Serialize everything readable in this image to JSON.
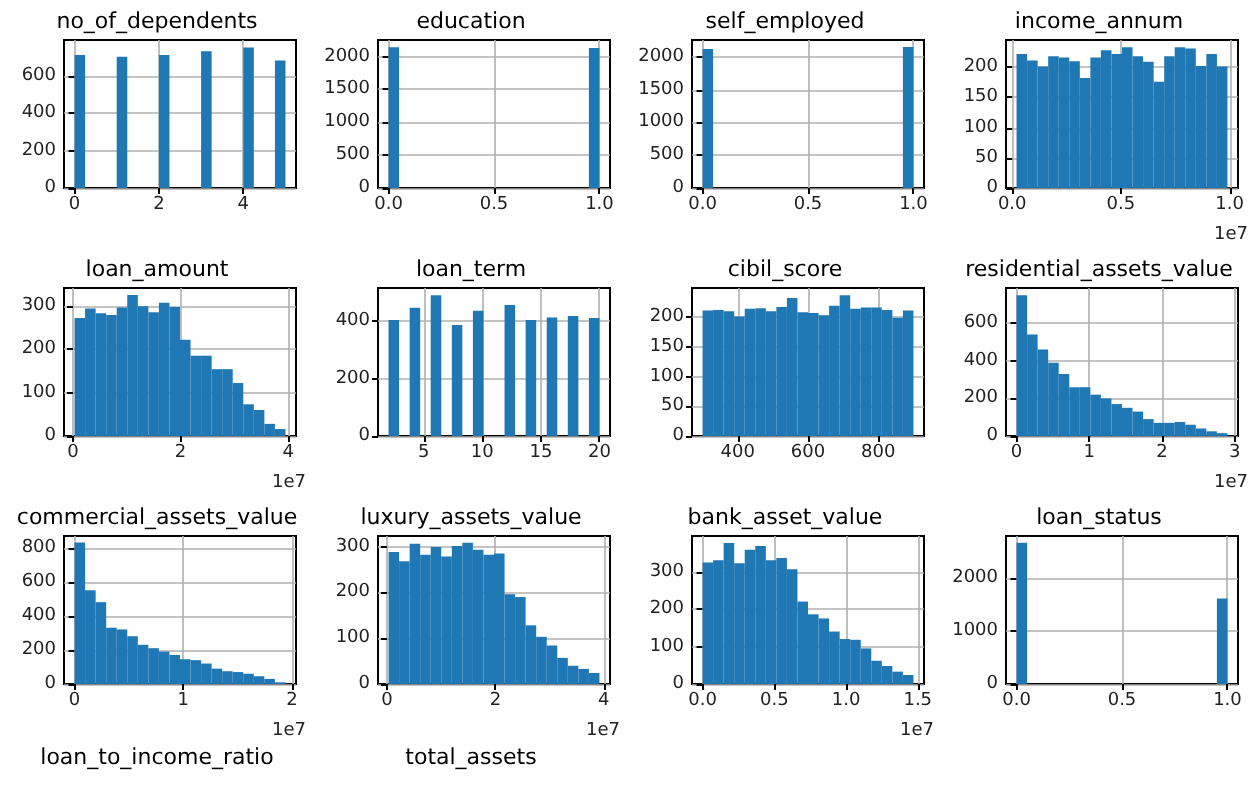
{
  "chart_data": [
    {
      "type": "histogram",
      "title": "no_of_dependents",
      "color": "#1f77b4",
      "grid": true,
      "bins": [
        0,
        0.25,
        0.5,
        0.75,
        1,
        1.25,
        1.5,
        1.75,
        2,
        2.25,
        2.5,
        2.75,
        3,
        3.25,
        3.5,
        3.75,
        4,
        4.25,
        4.5,
        4.75,
        5
      ],
      "values": [
        710,
        0,
        0,
        0,
        700,
        0,
        0,
        0,
        710,
        0,
        0,
        0,
        730,
        0,
        0,
        0,
        750,
        0,
        0,
        680
      ],
      "xlim": [
        -0.25,
        5.25
      ],
      "xticks": [
        0,
        2,
        4
      ],
      "ylim": [
        0,
        790
      ],
      "yticks": [
        0,
        200,
        400,
        600
      ]
    },
    {
      "type": "histogram",
      "title": "education",
      "color": "#1f77b4",
      "grid": true,
      "bins": [
        0,
        0.05,
        0.1,
        0.15,
        0.2,
        0.25,
        0.3,
        0.35,
        0.4,
        0.45,
        0.5,
        0.55,
        0.6,
        0.65,
        0.7,
        0.75,
        0.8,
        0.85,
        0.9,
        0.95,
        1
      ],
      "values": [
        2140,
        0,
        0,
        0,
        0,
        0,
        0,
        0,
        0,
        0,
        0,
        0,
        0,
        0,
        0,
        0,
        0,
        0,
        0,
        2130
      ],
      "xlim": [
        -0.05,
        1.05
      ],
      "xticks": [
        {
          "value": 0,
          "label": "0.0"
        },
        {
          "value": 0.5,
          "label": "0.5"
        },
        {
          "value": 1,
          "label": "1.0"
        }
      ],
      "ylim": [
        0,
        2251
      ],
      "yticks": [
        0,
        500,
        1000,
        1500,
        2000
      ]
    },
    {
      "type": "histogram",
      "title": "self_employed",
      "color": "#1f77b4",
      "grid": true,
      "bins": [
        0,
        0.05,
        0.1,
        0.15,
        0.2,
        0.25,
        0.3,
        0.35,
        0.4,
        0.45,
        0.5,
        0.55,
        0.6,
        0.65,
        0.7,
        0.75,
        0.8,
        0.85,
        0.9,
        0.95,
        1
      ],
      "values": [
        2120,
        0,
        0,
        0,
        0,
        0,
        0,
        0,
        0,
        0,
        0,
        0,
        0,
        0,
        0,
        0,
        0,
        0,
        0,
        2150
      ],
      "xlim": [
        -0.05,
        1.05
      ],
      "xticks": [
        {
          "value": 0,
          "label": "0.0"
        },
        {
          "value": 0.5,
          "label": "0.5"
        },
        {
          "value": 1,
          "label": "1.0"
        }
      ],
      "ylim": [
        0,
        2258
      ],
      "yticks": [
        0,
        500,
        1000,
        1500,
        2000
      ]
    },
    {
      "type": "histogram",
      "title": "income_annum",
      "xlabel": "1e7",
      "color": "#1f77b4",
      "grid": true,
      "bins": [
        0.02,
        0.0685,
        0.117,
        0.1655,
        0.214,
        0.2625,
        0.311,
        0.3595,
        0.408,
        0.4565,
        0.505,
        0.5535,
        0.602,
        0.6505,
        0.699,
        0.7475,
        0.796,
        0.8445,
        0.893,
        0.9415,
        0.99
      ],
      "values": [
        222,
        211,
        201,
        218,
        216,
        210,
        182,
        216,
        228,
        222,
        233,
        218,
        209,
        176,
        218,
        233,
        231,
        202,
        222,
        201
      ],
      "xlim": [
        -0.0285,
        1.0385
      ],
      "xticks": [
        {
          "value": 0,
          "label": "0.0"
        },
        {
          "value": 0.5,
          "label": "0.5"
        },
        {
          "value": 1,
          "label": "1.0"
        }
      ],
      "ylim": [
        0,
        245
      ],
      "yticks": [
        0,
        50,
        100,
        150,
        200
      ]
    },
    {
      "type": "histogram",
      "title": "loan_amount",
      "xlabel": "1e7",
      "color": "#1f77b4",
      "grid": true,
      "bins": [
        0.03,
        0.226,
        0.422,
        0.618,
        0.814,
        1.01,
        1.206,
        1.402,
        1.598,
        1.794,
        1.99,
        2.186,
        2.382,
        2.578,
        2.774,
        2.97,
        3.166,
        3.362,
        3.558,
        3.754,
        3.95
      ],
      "values": [
        272,
        294,
        283,
        279,
        296,
        325,
        299,
        285,
        307,
        297,
        222,
        185,
        185,
        154,
        154,
        122,
        73,
        60,
        28,
        16
      ],
      "xlim": [
        -0.166,
        4.146
      ],
      "xticks": [
        0,
        2,
        4
      ],
      "ylim": [
        0,
        341
      ],
      "yticks": [
        0,
        100,
        200,
        300
      ]
    },
    {
      "type": "histogram",
      "title": "loan_term",
      "color": "#1f77b4",
      "grid": true,
      "bins": [
        2,
        2.9,
        3.8,
        4.7,
        5.6,
        6.5,
        7.4,
        8.3,
        9.2,
        10.1,
        11,
        11.9,
        12.8,
        13.7,
        14.6,
        15.5,
        16.4,
        17.3,
        18.2,
        19.1,
        20
      ],
      "values": [
        404,
        0,
        446,
        0,
        490,
        0,
        386,
        0,
        436,
        0,
        0,
        456,
        0,
        404,
        0,
        412,
        0,
        418,
        0,
        411
      ],
      "xlim": [
        1.1,
        20.9
      ],
      "xticks": [
        5,
        10,
        15,
        20
      ],
      "ylim": [
        0,
        515
      ],
      "yticks": [
        0,
        200,
        400
      ]
    },
    {
      "type": "histogram",
      "title": "cibil_score",
      "color": "#1f77b4",
      "grid": true,
      "bins": [
        300,
        330,
        360,
        390,
        420,
        450,
        480,
        510,
        540,
        570,
        600,
        630,
        660,
        690,
        720,
        750,
        780,
        810,
        840,
        870,
        900
      ],
      "values": [
        211,
        212,
        210,
        201,
        214,
        215,
        210,
        217,
        232,
        208,
        207,
        203,
        219,
        237,
        214,
        216,
        216,
        212,
        199,
        211
      ],
      "xlim": [
        270,
        930
      ],
      "xticks": [
        400,
        600,
        800
      ],
      "ylim": [
        0,
        249
      ],
      "yticks": [
        0,
        50,
        100,
        150,
        200
      ]
    },
    {
      "type": "histogram",
      "title": "residential_assets_value",
      "xlabel": "1e7",
      "color": "#1f77b4",
      "grid": true,
      "bins": [
        0,
        0.145,
        0.29,
        0.435,
        0.58,
        0.725,
        0.87,
        1.015,
        1.16,
        1.305,
        1.45,
        1.595,
        1.74,
        1.885,
        2.03,
        2.175,
        2.32,
        2.465,
        2.61,
        2.755,
        2.9
      ],
      "values": [
        750,
        540,
        460,
        390,
        330,
        260,
        260,
        220,
        200,
        170,
        150,
        130,
        90,
        70,
        70,
        75,
        60,
        40,
        25,
        15
      ],
      "xlim": [
        -0.145,
        3.045
      ],
      "xticks": [
        0,
        1,
        2,
        3
      ],
      "ylim": [
        0,
        788
      ],
      "yticks": [
        0,
        200,
        400,
        600
      ]
    },
    {
      "type": "histogram",
      "title": "commercial_assets_value",
      "xlabel": "1e7",
      "color": "#1f77b4",
      "grid": true,
      "bins": [
        0,
        0.097,
        0.194,
        0.291,
        0.388,
        0.485,
        0.582,
        0.679,
        0.776,
        0.873,
        0.97,
        1.067,
        1.164,
        1.261,
        1.358,
        1.455,
        1.552,
        1.649,
        1.746,
        1.843,
        1.94
      ],
      "values": [
        830,
        550,
        480,
        330,
        320,
        280,
        230,
        210,
        190,
        170,
        145,
        140,
        120,
        90,
        75,
        70,
        60,
        45,
        30,
        10
      ],
      "xlim": [
        -0.097,
        2.037
      ],
      "xticks": [
        0,
        1,
        2
      ],
      "ylim": [
        0,
        868
      ],
      "yticks": [
        0,
        200,
        400,
        600,
        800
      ]
    },
    {
      "type": "histogram",
      "title": "luxury_assets_value",
      "xlabel": "1e7",
      "color": "#1f77b4",
      "grid": true,
      "bins": [
        0.03,
        0.2245,
        0.419,
        0.6135,
        0.808,
        1.0025,
        1.197,
        1.3915,
        1.586,
        1.7805,
        1.975,
        2.1695,
        2.364,
        2.5585,
        2.753,
        2.9475,
        3.142,
        3.3365,
        3.531,
        3.7255,
        3.92
      ],
      "values": [
        288,
        268,
        306,
        282,
        299,
        278,
        301,
        308,
        293,
        282,
        285,
        196,
        190,
        128,
        103,
        84,
        57,
        40,
        33,
        24
      ],
      "xlim": [
        -0.1645,
        4.1145
      ],
      "xticks": [
        0,
        2,
        4
      ],
      "ylim": [
        0,
        323
      ],
      "yticks": [
        0,
        100,
        200,
        300
      ]
    },
    {
      "type": "histogram",
      "title": "bank_asset_value",
      "xlabel": "1e7",
      "color": "#1f77b4",
      "grid": true,
      "bins": [
        0,
        0.0735,
        0.147,
        0.2205,
        0.294,
        0.3675,
        0.441,
        0.5145,
        0.588,
        0.6615,
        0.735,
        0.8085,
        0.882,
        0.9555,
        1.029,
        1.1025,
        1.176,
        1.2495,
        1.323,
        1.3965,
        1.47
      ],
      "values": [
        324,
        330,
        376,
        322,
        358,
        368,
        330,
        336,
        306,
        220,
        186,
        175,
        140,
        120,
        118,
        95,
        62,
        48,
        33,
        24
      ],
      "xlim": [
        -0.0735,
        1.5435
      ],
      "xticks": [
        {
          "value": 0,
          "label": "0.0"
        },
        {
          "value": 0.5,
          "label": "0.5"
        },
        {
          "value": 1,
          "label": "1.0"
        },
        {
          "value": 1.5,
          "label": "1.5"
        }
      ],
      "ylim": [
        0,
        395
      ],
      "yticks": [
        0,
        100,
        200,
        300
      ]
    },
    {
      "type": "histogram",
      "title": "loan_status",
      "color": "#1f77b4",
      "grid": true,
      "bins": [
        0,
        0.05,
        0.1,
        0.15,
        0.2,
        0.25,
        0.3,
        0.35,
        0.4,
        0.45,
        0.5,
        0.55,
        0.6,
        0.65,
        0.7,
        0.75,
        0.8,
        0.85,
        0.9,
        0.95,
        1
      ],
      "values": [
        2660,
        0,
        0,
        0,
        0,
        0,
        0,
        0,
        0,
        0,
        0,
        0,
        0,
        0,
        0,
        0,
        0,
        0,
        0,
        1610
      ],
      "xlim": [
        -0.05,
        1.05
      ],
      "xticks": [
        {
          "value": 0,
          "label": "0.0"
        },
        {
          "value": 0.5,
          "label": "0.5"
        },
        {
          "value": 1,
          "label": "1.0"
        }
      ],
      "ylim": [
        0,
        2789
      ],
      "yticks": [
        0,
        1000,
        2000
      ]
    },
    {
      "type": "other",
      "title": "loan_to_income_ratio"
    },
    {
      "type": "other",
      "title": "total_assets"
    }
  ]
}
